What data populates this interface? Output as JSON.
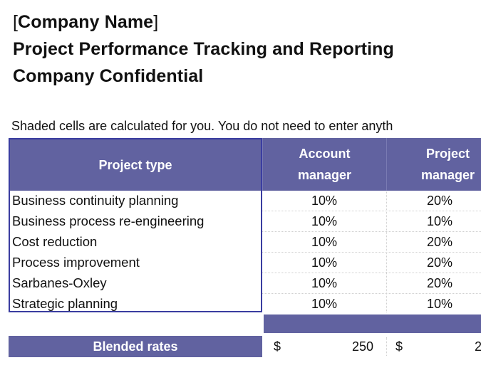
{
  "header": {
    "bracket_open": "[",
    "company_name": "Company Name",
    "bracket_close": "]",
    "report_title": "Project Performance Tracking and Reporting",
    "confidential": "Company Confidential"
  },
  "note": "Shaded cells are calculated for you. You do not need to enter anyth",
  "table": {
    "headers": {
      "project_type": "Project type",
      "col1_line1": "Account",
      "col1_line2": "manager",
      "col2_line1": "Project",
      "col2_line2": "manager"
    },
    "rows": [
      {
        "project_type": "Business continuity planning",
        "account_manager": "10%",
        "project_manager": "20%"
      },
      {
        "project_type": "Business process re-engineering",
        "account_manager": "10%",
        "project_manager": "10%"
      },
      {
        "project_type": "Cost reduction",
        "account_manager": "10%",
        "project_manager": "20%"
      },
      {
        "project_type": "Process improvement",
        "account_manager": "10%",
        "project_manager": "20%"
      },
      {
        "project_type": "Sarbanes-Oxley",
        "account_manager": "10%",
        "project_manager": "20%"
      },
      {
        "project_type": "Strategic planning",
        "account_manager": "10%",
        "project_manager": "10%"
      }
    ]
  },
  "blended": {
    "label": "Blended rates",
    "account_manager_currency": "$",
    "account_manager_value": "250",
    "project_manager_currency": "$",
    "project_manager_value": "2"
  },
  "colors": {
    "header_fill": "#6162a0",
    "border_blue": "#3a3da0"
  }
}
